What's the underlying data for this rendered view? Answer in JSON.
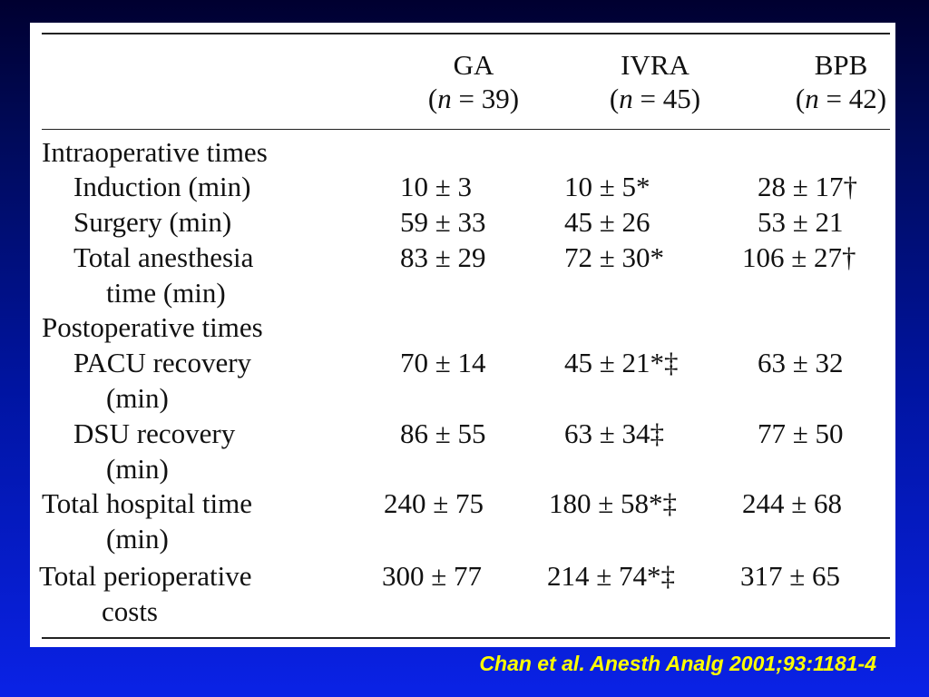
{
  "table": {
    "columns": [
      {
        "name": "GA",
        "n_label": "n",
        "n_eq": " = 39)"
      },
      {
        "name": "IVRA",
        "n_label": "n",
        "n_eq": " = 45)"
      },
      {
        "name": "BPB",
        "n_label": "n",
        "n_eq": " = 42)"
      }
    ],
    "section_intraop": "Intraoperative times",
    "section_postop": "Postoperative times",
    "rows": {
      "induction": {
        "label": "Induction (min)",
        "ga": "10 ± 3",
        "ivra": "10 ± 5*",
        "bpb": "28 ± 17†"
      },
      "surgery": {
        "label": "Surgery (min)",
        "ga": "59 ± 33",
        "ivra": "45 ± 26",
        "bpb": "53 ± 21"
      },
      "total_anesthesia": {
        "label1": "Total anesthesia",
        "label2": "time (min)",
        "ga": "83 ± 29",
        "ivra": "72 ± 30*",
        "bpb": "106 ± 27†"
      },
      "pacu": {
        "label1": "PACU recovery",
        "label2": "(min)",
        "ga": "70 ± 14",
        "ivra": "45 ± 21*‡",
        "bpb": "63 ± 32"
      },
      "dsu": {
        "label1": "DSU recovery",
        "label2": "(min)",
        "ga": "86 ± 55",
        "ivra": "63 ± 34‡",
        "bpb": "77 ± 50"
      },
      "total_hospital": {
        "label1": "Total hospital time",
        "label2": "(min)",
        "ga": "240 ± 75",
        "ivra": "180 ± 58*‡",
        "bpb": "244 ± 68"
      },
      "total_costs": {
        "label1": "Total perioperative",
        "label2": "costs",
        "ga": "300 ± 77",
        "ivra": "214 ± 74*‡",
        "bpb": "317 ± 65"
      }
    }
  },
  "citation": "Chan et al. Anesth Analg 2001;93:1181-4",
  "colors": {
    "citation": "#ffff00",
    "background_top": "#000030",
    "background_bottom": "#0a22e6"
  }
}
